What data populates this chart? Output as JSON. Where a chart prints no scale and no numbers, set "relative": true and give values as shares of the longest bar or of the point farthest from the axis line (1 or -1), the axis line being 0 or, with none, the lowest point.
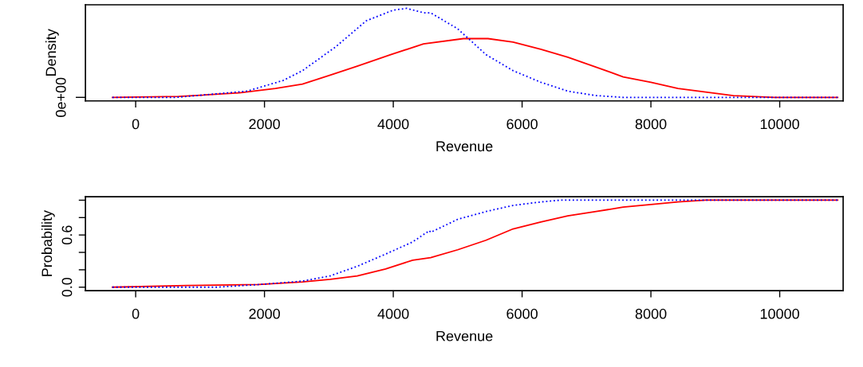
{
  "chart_data": [
    {
      "type": "line",
      "relative": true,
      "xlabel": "Revenue",
      "ylabel": "Density",
      "xlim": [
        -780,
        10985
      ],
      "xticks": [
        0,
        2000,
        4000,
        6000,
        8000,
        10000
      ],
      "annotations": [
        "0e+00"
      ],
      "grid": false,
      "series": [
        {
          "color": "#ff0000",
          "line_style": "solid",
          "x": [
            -360,
            670,
            1610,
            2170,
            2590,
            3020,
            3440,
            3960,
            4470,
            5090,
            5470,
            5860,
            6290,
            6710,
            7150,
            7570,
            8000,
            8420,
            8850,
            9280,
            9920,
            10900
          ],
          "values": [
            0,
            0.01,
            0.05,
            0.1,
            0.15,
            0.25,
            0.35,
            0.48,
            0.6,
            0.66,
            0.66,
            0.62,
            0.54,
            0.45,
            0.34,
            0.23,
            0.17,
            0.1,
            0.06,
            0.02,
            0,
            0
          ]
        },
        {
          "color": "#0000ff",
          "line_style": "dotted",
          "x": [
            -360,
            630,
            1730,
            2290,
            2590,
            3110,
            3580,
            4000,
            4210,
            4470,
            4580,
            5000,
            5440,
            5860,
            6290,
            6710,
            7150,
            7570,
            10900
          ],
          "values": [
            0,
            0,
            0.07,
            0.19,
            0.3,
            0.57,
            0.86,
            0.98,
            1.0,
            0.95,
            0.95,
            0.77,
            0.48,
            0.3,
            0.17,
            0.07,
            0.02,
            0,
            0
          ]
        }
      ]
    },
    {
      "type": "line",
      "xlabel": "Revenue",
      "ylabel": "Probability",
      "xlim": [
        -780,
        10985
      ],
      "xticks": [
        0,
        2000,
        4000,
        6000,
        8000,
        10000
      ],
      "ylim": [
        -0.04,
        1.04
      ],
      "yticks": [
        {
          "value": 0,
          "label": "0.0"
        },
        {
          "value": 0.2,
          "label": null
        },
        {
          "value": 0.4,
          "label": null
        },
        {
          "value": 0.6,
          "label": "0.6"
        },
        {
          "value": 0.8,
          "label": null
        },
        {
          "value": 1.0,
          "label": null
        }
      ],
      "grid": false,
      "series": [
        {
          "color": "#ff0000",
          "line_style": "solid",
          "x": [
            -360,
            790,
            1910,
            2590,
            3020,
            3440,
            3880,
            4300,
            4580,
            5000,
            5440,
            5860,
            6290,
            6710,
            7150,
            7570,
            8000,
            8420,
            8850,
            10900
          ],
          "values": [
            0,
            0.02,
            0.03,
            0.06,
            0.09,
            0.13,
            0.21,
            0.31,
            0.34,
            0.43,
            0.54,
            0.67,
            0.75,
            0.82,
            0.87,
            0.92,
            0.95,
            0.98,
            1.0,
            1.0
          ]
        },
        {
          "color": "#0000ff",
          "line_style": "dotted",
          "x": [
            -360,
            1260,
            1910,
            2590,
            3020,
            3440,
            3880,
            4300,
            4560,
            4580,
            5000,
            5440,
            5860,
            6290,
            6590,
            10900
          ],
          "values": [
            0,
            0,
            0.03,
            0.07,
            0.13,
            0.24,
            0.38,
            0.52,
            0.65,
            0.63,
            0.78,
            0.87,
            0.94,
            0.98,
            1.0,
            1.0
          ]
        }
      ]
    }
  ]
}
